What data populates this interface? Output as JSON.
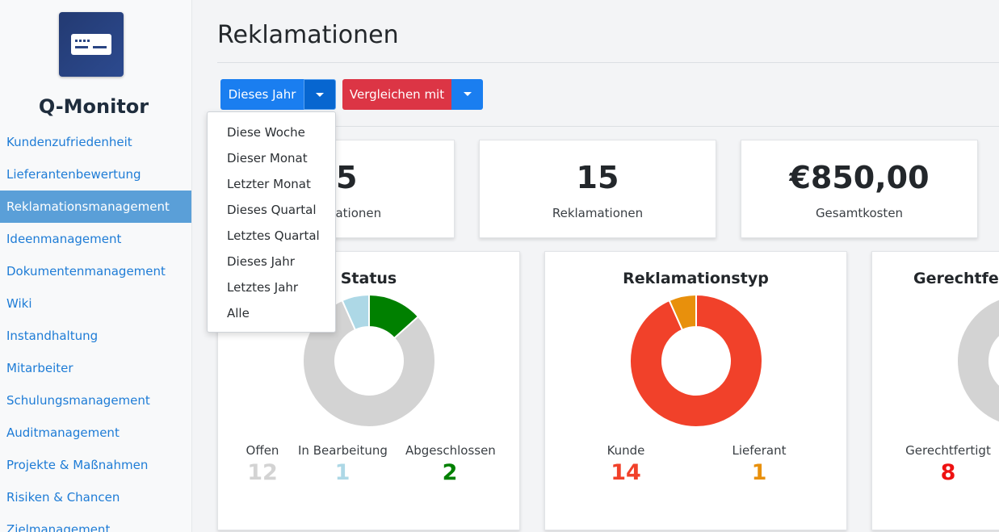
{
  "app": {
    "name": "Q-Monitor",
    "logo_icon": "id-card-icon"
  },
  "sidebar": {
    "items": [
      {
        "label": "Kundenzufriedenheit",
        "active": false
      },
      {
        "label": "Lieferantenbewertung",
        "active": false
      },
      {
        "label": "Reklamationsmanagement",
        "active": true
      },
      {
        "label": "Ideenmanagement",
        "active": false
      },
      {
        "label": "Dokumentenmanagement",
        "active": false
      },
      {
        "label": "Wiki",
        "active": false
      },
      {
        "label": "Instandhaltung",
        "active": false
      },
      {
        "label": "Mitarbeiter",
        "active": false
      },
      {
        "label": "Schulungsmanagement",
        "active": false
      },
      {
        "label": "Auditmanagement",
        "active": false
      },
      {
        "label": "Projekte & Maßnahmen",
        "active": false
      },
      {
        "label": "Risiken & Chancen",
        "active": false
      },
      {
        "label": "Zielmanagement",
        "active": false
      }
    ]
  },
  "page": {
    "title": "Reklamationen"
  },
  "toolbar": {
    "period_label": "Dieses Jahr",
    "compare_label": "Vergleichen mit"
  },
  "period_dropdown": {
    "open": true,
    "options": [
      "Diese Woche",
      "Dieser Monat",
      "Letzter Monat",
      "Dieses Quartal",
      "Letztes Quartal",
      "Dieses Jahr",
      "Letztes Jahr",
      "Alle"
    ]
  },
  "kpis": [
    {
      "value": "15",
      "label": "Reklamationen"
    },
    {
      "value": "15",
      "label": "Reklamationen"
    },
    {
      "value": "€850,00",
      "label": "Gesamtkosten"
    }
  ],
  "charts": [
    {
      "title": "Status",
      "segments": [
        {
          "label": "Offen",
          "value": "12",
          "color": "#d3d3d3"
        },
        {
          "label": "In Bearbeitung",
          "value": "1",
          "color": "#add8e6"
        },
        {
          "label": "Abgeschlossen",
          "value": "2",
          "color": "#008000"
        }
      ]
    },
    {
      "title": "Reklamationstyp",
      "segments": [
        {
          "label": "Kunde",
          "value": "14",
          "color": "#f1412a"
        },
        {
          "label": "Lieferant",
          "value": "1",
          "color": "#e8900c"
        }
      ]
    },
    {
      "title": "Gerechtfertigt",
      "segments": [
        {
          "label": "Gerechtfertigt",
          "value": "8",
          "color": "#ee1111"
        }
      ]
    }
  ],
  "colors": {
    "primary": "#1a7ef0",
    "danger": "#dc3545",
    "sidebar_active": "#5a9fd8",
    "link": "#1e7cd6"
  }
}
